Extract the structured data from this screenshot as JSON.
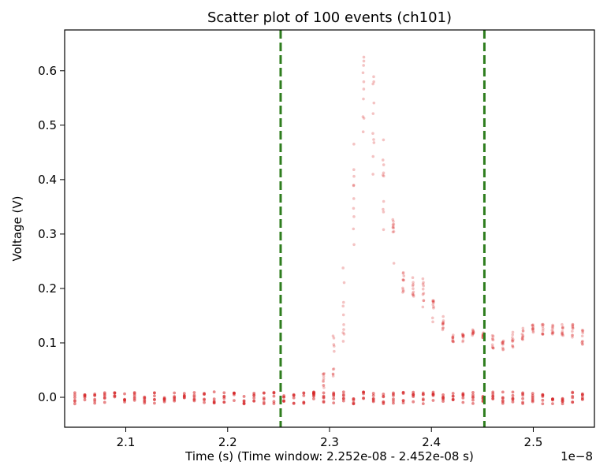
{
  "chart_data": {
    "type": "scatter",
    "title": "Scatter plot of 100 events (ch101)",
    "xlabel": "Time (s) (Time window: 2.252e-08 - 2.452e-08 s)",
    "ylabel": "Voltage (V)",
    "x_offset_label": "1e−8",
    "xlim": [
      2.04,
      2.56
    ],
    "ylim": [
      -0.055,
      0.675
    ],
    "x_tick_values": [
      2.1,
      2.2,
      2.3,
      2.4,
      2.5
    ],
    "x_ticks": [
      "2.1",
      "2.2",
      "2.3",
      "2.4",
      "2.5"
    ],
    "y_tick_values": [
      0.0,
      0.1,
      0.2,
      0.3,
      0.4,
      0.5,
      0.6
    ],
    "y_ticks": [
      "0.0",
      "0.1",
      "0.2",
      "0.3",
      "0.4",
      "0.5",
      "0.6"
    ],
    "time_window": [
      2.252,
      2.452
    ],
    "point_color": "#d62728",
    "window_line_color": "#2e7d1e",
    "sample_step": 0.00977,
    "x_start": 2.05,
    "x_end": 2.553,
    "baseline_band": [
      -0.012,
      0.01
    ],
    "pulse_envelope": [
      {
        "x": 2.05,
        "lo": 0.0,
        "hi": 0.0
      },
      {
        "x": 2.28,
        "lo": 0.0,
        "hi": 0.0
      },
      {
        "x": 2.29,
        "lo": 0.0,
        "hi": 0.02
      },
      {
        "x": 2.3,
        "lo": 0.02,
        "hi": 0.1
      },
      {
        "x": 2.31,
        "lo": 0.06,
        "hi": 0.14
      },
      {
        "x": 2.32,
        "lo": 0.15,
        "hi": 0.4
      },
      {
        "x": 2.33,
        "lo": 0.35,
        "hi": 0.61
      },
      {
        "x": 2.335,
        "lo": 0.5,
        "hi": 0.645
      },
      {
        "x": 2.34,
        "lo": 0.45,
        "hi": 0.63
      },
      {
        "x": 2.35,
        "lo": 0.32,
        "hi": 0.53
      },
      {
        "x": 2.36,
        "lo": 0.25,
        "hi": 0.36
      },
      {
        "x": 2.37,
        "lo": 0.19,
        "hi": 0.25
      },
      {
        "x": 2.38,
        "lo": 0.19,
        "hi": 0.225
      },
      {
        "x": 2.39,
        "lo": 0.17,
        "hi": 0.225
      },
      {
        "x": 2.4,
        "lo": 0.14,
        "hi": 0.19
      },
      {
        "x": 2.41,
        "lo": 0.12,
        "hi": 0.155
      },
      {
        "x": 2.42,
        "lo": 0.1,
        "hi": 0.125
      },
      {
        "x": 2.43,
        "lo": 0.1,
        "hi": 0.115
      },
      {
        "x": 2.44,
        "lo": 0.105,
        "hi": 0.125
      },
      {
        "x": 2.45,
        "lo": 0.11,
        "hi": 0.12
      },
      {
        "x": 2.46,
        "lo": 0.09,
        "hi": 0.115
      },
      {
        "x": 2.47,
        "lo": 0.085,
        "hi": 0.105
      },
      {
        "x": 2.48,
        "lo": 0.09,
        "hi": 0.12
      },
      {
        "x": 2.49,
        "lo": 0.105,
        "hi": 0.13
      },
      {
        "x": 2.5,
        "lo": 0.115,
        "hi": 0.135
      },
      {
        "x": 2.52,
        "lo": 0.115,
        "hi": 0.135
      },
      {
        "x": 2.54,
        "lo": 0.11,
        "hi": 0.135
      },
      {
        "x": 2.553,
        "lo": 0.09,
        "hi": 0.125
      }
    ]
  }
}
